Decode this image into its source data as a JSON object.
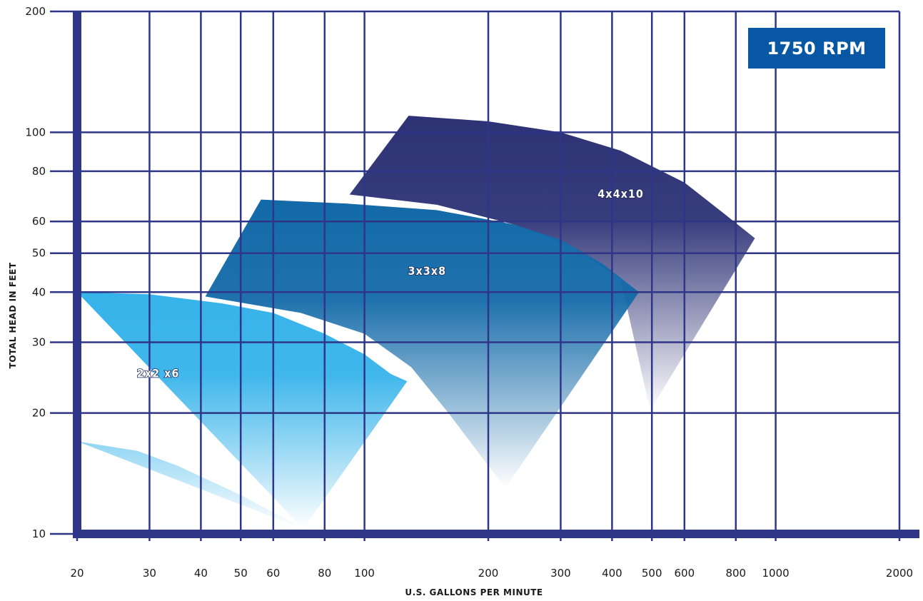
{
  "badge": {
    "text": "1750 RPM",
    "color": "#0757a5"
  },
  "chart_data": {
    "type": "area",
    "title": "",
    "xlabel": "U.S. GALLONS PER MINUTE",
    "ylabel": "TOTAL HEAD IN FEET",
    "x_scale": "log",
    "y_scale": "log",
    "xlim": [
      20,
      2000
    ],
    "ylim": [
      10,
      200
    ],
    "grid": true,
    "x_ticks": [
      20,
      30,
      40,
      50,
      60,
      80,
      100,
      200,
      300,
      400,
      500,
      600,
      800,
      1000,
      2000
    ],
    "x_tick_labels": [
      "20",
      "30",
      "40",
      "50",
      "60",
      "80",
      "100",
      "200",
      "300",
      "400",
      "500",
      "600",
      "800",
      "1000",
      "2000"
    ],
    "y_ticks": [
      10,
      20,
      30,
      40,
      50,
      60,
      80,
      100,
      200
    ],
    "y_tick_labels": [
      "10",
      "20",
      "30",
      "40",
      "50",
      "60",
      "80",
      "100",
      "200"
    ],
    "series": [
      {
        "name": "2x2 x6",
        "color_top": "#36b3ea",
        "color_bottom": "#ffffff",
        "label_at": [
          31.5,
          25
        ],
        "top_curve": [
          [
            20,
            40
          ],
          [
            30,
            39.5
          ],
          [
            45,
            37.5
          ],
          [
            60,
            35.5
          ],
          [
            80,
            31.5
          ],
          [
            100,
            28
          ],
          [
            116,
            25
          ],
          [
            127,
            24
          ]
        ],
        "right_edge": [
          [
            127,
            24
          ],
          [
            71,
            10.3
          ]
        ],
        "bottom_curve": [
          [
            71,
            10.3
          ],
          [
            50,
            12.5
          ],
          [
            35,
            14.8
          ],
          [
            28,
            16.1
          ],
          [
            20,
            17
          ]
        ]
      },
      {
        "name": "3x3x8",
        "color_top": "#136aa8",
        "color_bottom": "#ffffff",
        "label_at": [
          142,
          45
        ],
        "top_curve": [
          [
            56,
            68
          ],
          [
            90,
            66.5
          ],
          [
            150,
            64
          ],
          [
            230,
            59
          ],
          [
            300,
            54
          ],
          [
            380,
            47
          ],
          [
            465,
            40
          ]
        ],
        "right_edge": [
          [
            465,
            40
          ],
          [
            220,
            13
          ]
        ],
        "left_edge": [
          [
            41,
            39
          ],
          [
            56,
            68
          ]
        ],
        "bottom_curve": [
          [
            41,
            39
          ],
          [
            70,
            35.5
          ],
          [
            100,
            31.5
          ],
          [
            130,
            26
          ],
          [
            160,
            20
          ],
          [
            220,
            13
          ]
        ]
      },
      {
        "name": "4x4x10",
        "color_top": "#2d3275",
        "color_bottom": "#ffffff",
        "label_at": [
          420,
          70
        ],
        "top_curve": [
          [
            128,
            110
          ],
          [
            200,
            106.5
          ],
          [
            300,
            100
          ],
          [
            420,
            90
          ],
          [
            600,
            75
          ],
          [
            760,
            62
          ],
          [
            890,
            54.5
          ]
        ],
        "right_edge": [
          [
            890,
            54.5
          ],
          [
            495,
            20.3
          ]
        ],
        "left_edge": [
          [
            92,
            70
          ],
          [
            128,
            110
          ]
        ],
        "bottom_curve": [
          [
            92,
            70
          ],
          [
            150,
            66
          ],
          [
            230,
            59
          ],
          [
            320,
            52
          ],
          [
            420,
            43
          ]
        ]
      }
    ]
  }
}
